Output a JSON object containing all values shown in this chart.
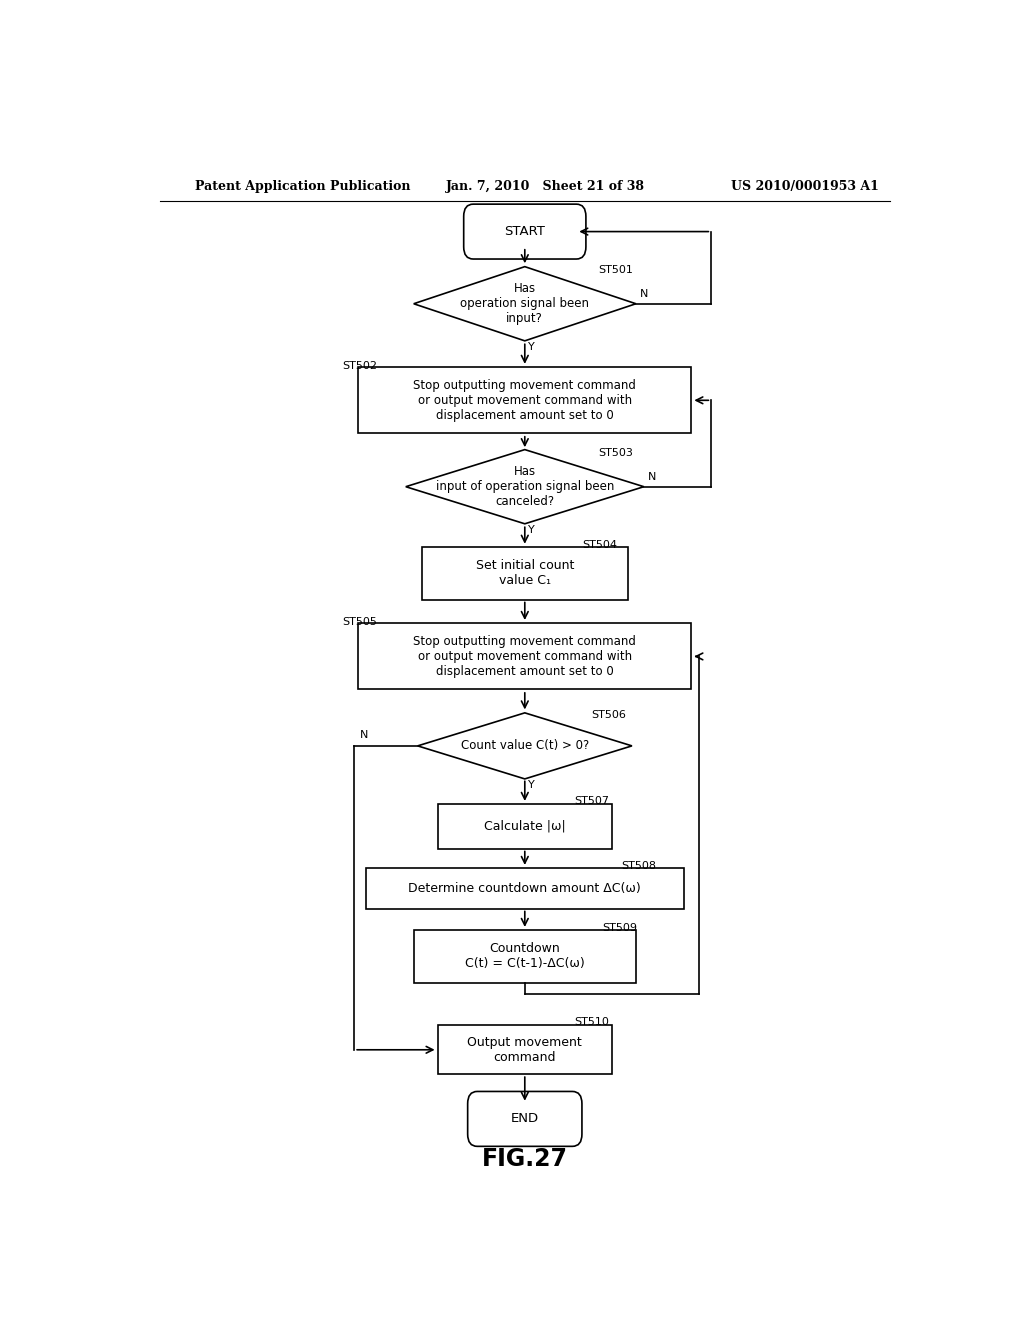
{
  "bg_color": "#ffffff",
  "header_left": "Patent Application Publication",
  "header_mid": "Jan. 7, 2010   Sheet 21 of 38",
  "header_right": "US 2010/0001953 A1",
  "figure_label": "FIG.27"
}
